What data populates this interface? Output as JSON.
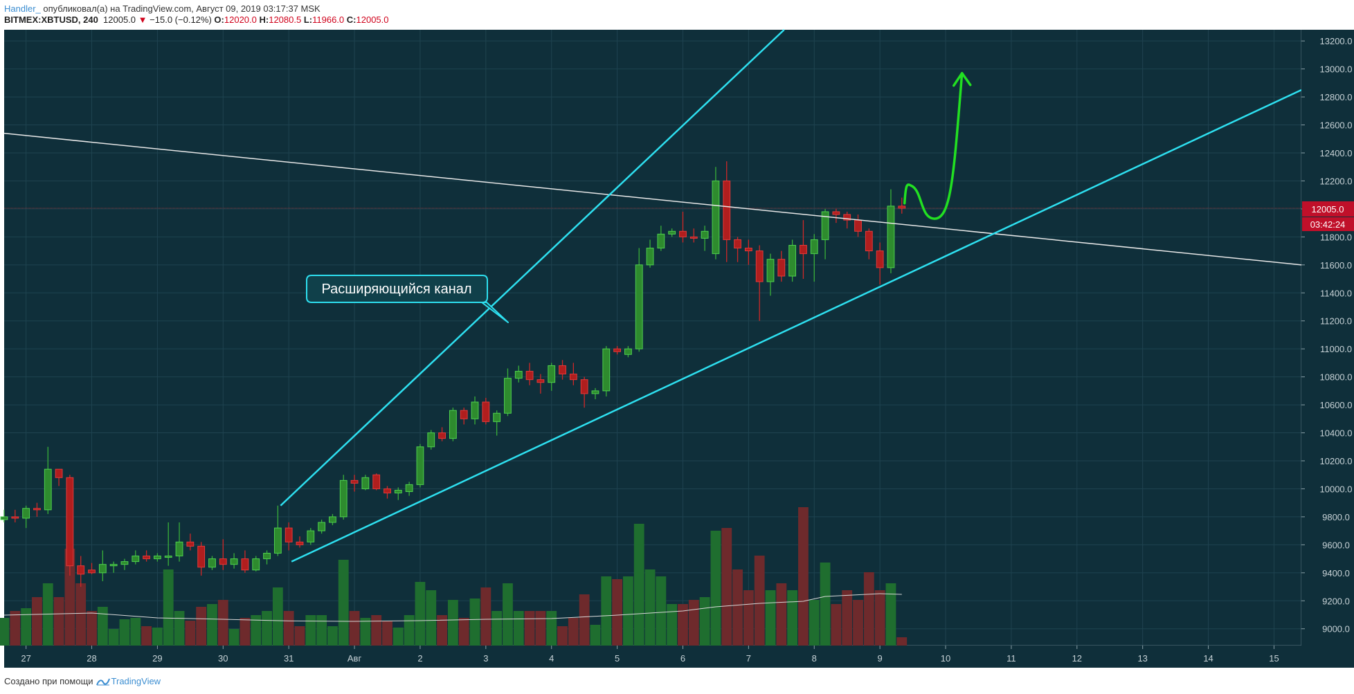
{
  "header": {
    "author": "Handler_",
    "published_text": "опубликовал(а) на TradingView.com, Август 09, 2019 03:17:37 MSK",
    "symbol": "BITMEX:XBTUSD, 240",
    "last": "12005.0",
    "change": "−15.0 (−0.12%)",
    "o_label": "O:",
    "o_value": "12020.0",
    "h_label": "H:",
    "h_value": "12080.5",
    "l_label": "L:",
    "l_value": "11966.0",
    "c_label": "C:",
    "c_value": "12005.0"
  },
  "footer": {
    "made_with": "Создано при помощи",
    "brand": "TradingView"
  },
  "colors": {
    "background": "#0f2f3a",
    "grid": "#1f4350",
    "bull": "#2e8b2e",
    "bear": "#b01e1e",
    "vol_bull": "#1f6e2f",
    "vol_bear": "#6e2a2c",
    "channel": "#2ee0f0",
    "trendline": "#e8e8e8",
    "projection": "#22e022",
    "price_tag": "#c0102a"
  },
  "chart_data": {
    "type": "candlestick",
    "timeframe_hours": 4,
    "y_range": [
      8880,
      13280
    ],
    "y_ticks": [
      9000,
      9200,
      9400,
      9600,
      9800,
      10000,
      10200,
      10400,
      10600,
      10800,
      11000,
      11200,
      11400,
      11600,
      11800,
      12000,
      12200,
      12400,
      12600,
      12800,
      13000,
      13200
    ],
    "x_range": [
      "2019-07-26T16:00",
      "2019-08-15T10:00"
    ],
    "x_ticks": [
      {
        "date": "2019-07-27",
        "label": "27"
      },
      {
        "date": "2019-07-28",
        "label": "28"
      },
      {
        "date": "2019-07-29",
        "label": "29"
      },
      {
        "date": "2019-07-30",
        "label": "30"
      },
      {
        "date": "2019-07-31",
        "label": "31"
      },
      {
        "date": "2019-08-01",
        "label": "Авг"
      },
      {
        "date": "2019-08-02",
        "label": "2"
      },
      {
        "date": "2019-08-03",
        "label": "3"
      },
      {
        "date": "2019-08-04",
        "label": "4"
      },
      {
        "date": "2019-08-05",
        "label": "5"
      },
      {
        "date": "2019-08-06",
        "label": "6"
      },
      {
        "date": "2019-08-07",
        "label": "7"
      },
      {
        "date": "2019-08-08",
        "label": "8"
      },
      {
        "date": "2019-08-09",
        "label": "9"
      },
      {
        "date": "2019-08-10",
        "label": "10"
      },
      {
        "date": "2019-08-11",
        "label": "11"
      },
      {
        "date": "2019-08-12",
        "label": "12"
      },
      {
        "date": "2019-08-13",
        "label": "13"
      },
      {
        "date": "2019-08-14",
        "label": "14"
      },
      {
        "date": "2019-08-15",
        "label": "15"
      }
    ],
    "candles": [
      {
        "t": "2019-07-26T16:00",
        "o": 9780,
        "h": 9850,
        "l": 9760,
        "c": 9800,
        "v": 0.2
      },
      {
        "t": "2019-07-26T20:00",
        "o": 9800,
        "h": 9850,
        "l": 9760,
        "c": 9790,
        "v": 0.25
      },
      {
        "t": "2019-07-27T00:00",
        "o": 9790,
        "h": 9880,
        "l": 9720,
        "c": 9860,
        "v": 0.27
      },
      {
        "t": "2019-07-27T04:00",
        "o": 9860,
        "h": 9900,
        "l": 9800,
        "c": 9850,
        "v": 0.35
      },
      {
        "t": "2019-07-27T08:00",
        "o": 9850,
        "h": 10300,
        "l": 9820,
        "c": 10140,
        "v": 0.45
      },
      {
        "t": "2019-07-27T12:00",
        "o": 10140,
        "h": 10140,
        "l": 10020,
        "c": 10080,
        "v": 0.35
      },
      {
        "t": "2019-07-27T16:00",
        "o": 10080,
        "h": 10100,
        "l": 9380,
        "c": 9450,
        "v": 0.7
      },
      {
        "t": "2019-07-27T20:00",
        "o": 9450,
        "h": 9520,
        "l": 9300,
        "c": 9390,
        "v": 0.45
      },
      {
        "t": "2019-07-28T00:00",
        "o": 9420,
        "h": 9470,
        "l": 9390,
        "c": 9400,
        "v": 0.25
      },
      {
        "t": "2019-07-28T04:00",
        "o": 9400,
        "h": 9560,
        "l": 9340,
        "c": 9460,
        "v": 0.28
      },
      {
        "t": "2019-07-28T08:00",
        "o": 9460,
        "h": 9480,
        "l": 9400,
        "c": 9460,
        "v": 0.12
      },
      {
        "t": "2019-07-28T12:00",
        "o": 9460,
        "h": 9500,
        "l": 9420,
        "c": 9480,
        "v": 0.19
      },
      {
        "t": "2019-07-28T16:00",
        "o": 9480,
        "h": 9560,
        "l": 9460,
        "c": 9520,
        "v": 0.2
      },
      {
        "t": "2019-07-28T20:00",
        "o": 9520,
        "h": 9560,
        "l": 9480,
        "c": 9500,
        "v": 0.14
      },
      {
        "t": "2019-07-29T00:00",
        "o": 9500,
        "h": 9540,
        "l": 9480,
        "c": 9520,
        "v": 0.13
      },
      {
        "t": "2019-07-29T04:00",
        "o": 9520,
        "h": 9760,
        "l": 9450,
        "c": 9520,
        "v": 0.55
      },
      {
        "t": "2019-07-29T08:00",
        "o": 9520,
        "h": 9760,
        "l": 9480,
        "c": 9620,
        "v": 0.25
      },
      {
        "t": "2019-07-29T12:00",
        "o": 9620,
        "h": 9680,
        "l": 9560,
        "c": 9590,
        "v": 0.18
      },
      {
        "t": "2019-07-29T16:00",
        "o": 9590,
        "h": 9620,
        "l": 9380,
        "c": 9440,
        "v": 0.28
      },
      {
        "t": "2019-07-29T20:00",
        "o": 9440,
        "h": 9520,
        "l": 9420,
        "c": 9500,
        "v": 0.3
      },
      {
        "t": "2019-07-30T00:00",
        "o": 9500,
        "h": 9640,
        "l": 9420,
        "c": 9460,
        "v": 0.33
      },
      {
        "t": "2019-07-30T04:00",
        "o": 9460,
        "h": 9540,
        "l": 9430,
        "c": 9500,
        "v": 0.12
      },
      {
        "t": "2019-07-30T08:00",
        "o": 9500,
        "h": 9560,
        "l": 9400,
        "c": 9420,
        "v": 0.2
      },
      {
        "t": "2019-07-30T12:00",
        "o": 9420,
        "h": 9520,
        "l": 9410,
        "c": 9500,
        "v": 0.22
      },
      {
        "t": "2019-07-30T16:00",
        "o": 9500,
        "h": 9560,
        "l": 9460,
        "c": 9540,
        "v": 0.25
      },
      {
        "t": "2019-07-30T20:00",
        "o": 9540,
        "h": 9880,
        "l": 9520,
        "c": 9720,
        "v": 0.42
      },
      {
        "t": "2019-07-31T00:00",
        "o": 9720,
        "h": 9760,
        "l": 9560,
        "c": 9620,
        "v": 0.25
      },
      {
        "t": "2019-07-31T04:00",
        "o": 9620,
        "h": 9660,
        "l": 9580,
        "c": 9600,
        "v": 0.14
      },
      {
        "t": "2019-07-31T08:00",
        "o": 9620,
        "h": 9720,
        "l": 9600,
        "c": 9700,
        "v": 0.22
      },
      {
        "t": "2019-07-31T12:00",
        "o": 9700,
        "h": 9780,
        "l": 9680,
        "c": 9760,
        "v": 0.22
      },
      {
        "t": "2019-07-31T16:00",
        "o": 9760,
        "h": 9820,
        "l": 9740,
        "c": 9800,
        "v": 0.14
      },
      {
        "t": "2019-07-31T20:00",
        "o": 9800,
        "h": 10100,
        "l": 9780,
        "c": 10060,
        "v": 0.62
      },
      {
        "t": "2019-08-01T00:00",
        "o": 10060,
        "h": 10100,
        "l": 9980,
        "c": 10040,
        "v": 0.25
      },
      {
        "t": "2019-08-01T04:00",
        "o": 10000,
        "h": 10100,
        "l": 9990,
        "c": 10080,
        "v": 0.2
      },
      {
        "t": "2019-08-01T08:00",
        "o": 10100,
        "h": 10110,
        "l": 9990,
        "c": 10000,
        "v": 0.22
      },
      {
        "t": "2019-08-01T12:00",
        "o": 10000,
        "h": 10020,
        "l": 9930,
        "c": 9970,
        "v": 0.18
      },
      {
        "t": "2019-08-01T16:00",
        "o": 9970,
        "h": 10010,
        "l": 9920,
        "c": 9990,
        "v": 0.13
      },
      {
        "t": "2019-08-01T20:00",
        "o": 9980,
        "h": 10050,
        "l": 9950,
        "c": 10030,
        "v": 0.22
      },
      {
        "t": "2019-08-02T00:00",
        "o": 10030,
        "h": 10320,
        "l": 10010,
        "c": 10300,
        "v": 0.46
      },
      {
        "t": "2019-08-02T04:00",
        "o": 10300,
        "h": 10420,
        "l": 10280,
        "c": 10400,
        "v": 0.4
      },
      {
        "t": "2019-08-02T08:00",
        "o": 10400,
        "h": 10440,
        "l": 10340,
        "c": 10360,
        "v": 0.22
      },
      {
        "t": "2019-08-02T12:00",
        "o": 10360,
        "h": 10580,
        "l": 10340,
        "c": 10560,
        "v": 0.33
      },
      {
        "t": "2019-08-02T16:00",
        "o": 10560,
        "h": 10580,
        "l": 10460,
        "c": 10500,
        "v": 0.2
      },
      {
        "t": "2019-08-02T20:00",
        "o": 10500,
        "h": 10660,
        "l": 10460,
        "c": 10620,
        "v": 0.34
      },
      {
        "t": "2019-08-03T00:00",
        "o": 10620,
        "h": 10650,
        "l": 10460,
        "c": 10480,
        "v": 0.42
      },
      {
        "t": "2019-08-03T04:00",
        "o": 10480,
        "h": 10560,
        "l": 10380,
        "c": 10540,
        "v": 0.25
      },
      {
        "t": "2019-08-03T08:00",
        "o": 10540,
        "h": 10860,
        "l": 10520,
        "c": 10790,
        "v": 0.45
      },
      {
        "t": "2019-08-03T12:00",
        "o": 10790,
        "h": 10880,
        "l": 10760,
        "c": 10840,
        "v": 0.25
      },
      {
        "t": "2019-08-03T16:00",
        "o": 10840,
        "h": 10900,
        "l": 10740,
        "c": 10780,
        "v": 0.25
      },
      {
        "t": "2019-08-03T20:00",
        "o": 10780,
        "h": 10820,
        "l": 10680,
        "c": 10760,
        "v": 0.25
      },
      {
        "t": "2019-08-04T00:00",
        "o": 10760,
        "h": 10900,
        "l": 10700,
        "c": 10880,
        "v": 0.25
      },
      {
        "t": "2019-08-04T04:00",
        "o": 10880,
        "h": 10920,
        "l": 10780,
        "c": 10820,
        "v": 0.14
      },
      {
        "t": "2019-08-04T08:00",
        "o": 10820,
        "h": 10900,
        "l": 10740,
        "c": 10780,
        "v": 0.2
      },
      {
        "t": "2019-08-04T12:00",
        "o": 10780,
        "h": 10800,
        "l": 10580,
        "c": 10680,
        "v": 0.37
      },
      {
        "t": "2019-08-04T16:00",
        "o": 10680,
        "h": 10720,
        "l": 10640,
        "c": 10700,
        "v": 0.15
      },
      {
        "t": "2019-08-04T20:00",
        "o": 10700,
        "h": 11020,
        "l": 10660,
        "c": 11000,
        "v": 0.5
      },
      {
        "t": "2019-08-05T00:00",
        "o": 11000,
        "h": 11020,
        "l": 10960,
        "c": 10980,
        "v": 0.48
      },
      {
        "t": "2019-08-05T04:00",
        "o": 10960,
        "h": 11020,
        "l": 10940,
        "c": 11000,
        "v": 0.5
      },
      {
        "t": "2019-08-05T08:00",
        "o": 11000,
        "h": 11720,
        "l": 10980,
        "c": 11600,
        "v": 0.88
      },
      {
        "t": "2019-08-05T12:00",
        "o": 11600,
        "h": 11780,
        "l": 11580,
        "c": 11720,
        "v": 0.55
      },
      {
        "t": "2019-08-05T16:00",
        "o": 11720,
        "h": 11880,
        "l": 11700,
        "c": 11820,
        "v": 0.5
      },
      {
        "t": "2019-08-05T20:00",
        "o": 11820,
        "h": 11860,
        "l": 11800,
        "c": 11840,
        "v": 0.3
      },
      {
        "t": "2019-08-06T00:00",
        "o": 11840,
        "h": 11980,
        "l": 11760,
        "c": 11800,
        "v": 0.3
      },
      {
        "t": "2019-08-06T04:00",
        "o": 11800,
        "h": 11860,
        "l": 11760,
        "c": 11790,
        "v": 0.33
      },
      {
        "t": "2019-08-06T08:00",
        "o": 11790,
        "h": 11880,
        "l": 11700,
        "c": 11840,
        "v": 0.35
      },
      {
        "t": "2019-08-06T12:00",
        "o": 11680,
        "h": 12300,
        "l": 11640,
        "c": 12200,
        "v": 0.83
      },
      {
        "t": "2019-08-06T16:00",
        "o": 12200,
        "h": 12340,
        "l": 11620,
        "c": 11780,
        "v": 0.85
      },
      {
        "t": "2019-08-06T20:00",
        "o": 11780,
        "h": 11800,
        "l": 11620,
        "c": 11720,
        "v": 0.55
      },
      {
        "t": "2019-08-07T00:00",
        "o": 11720,
        "h": 11780,
        "l": 11600,
        "c": 11700,
        "v": 0.4
      },
      {
        "t": "2019-08-07T04:00",
        "o": 11700,
        "h": 11740,
        "l": 11200,
        "c": 11480,
        "v": 0.65
      },
      {
        "t": "2019-08-07T08:00",
        "o": 11480,
        "h": 11680,
        "l": 11380,
        "c": 11640,
        "v": 0.4
      },
      {
        "t": "2019-08-07T12:00",
        "o": 11640,
        "h": 11700,
        "l": 11480,
        "c": 11520,
        "v": 0.45
      },
      {
        "t": "2019-08-07T16:00",
        "o": 11520,
        "h": 11780,
        "l": 11480,
        "c": 11740,
        "v": 0.4
      },
      {
        "t": "2019-08-07T20:00",
        "o": 11740,
        "h": 11920,
        "l": 11500,
        "c": 11680,
        "v": 1.0
      },
      {
        "t": "2019-08-08T00:00",
        "o": 11680,
        "h": 11820,
        "l": 11480,
        "c": 11780,
        "v": 0.33
      },
      {
        "t": "2019-08-08T04:00",
        "o": 11780,
        "h": 12000,
        "l": 11640,
        "c": 11980,
        "v": 0.6
      },
      {
        "t": "2019-08-08T08:00",
        "o": 11980,
        "h": 12000,
        "l": 11900,
        "c": 11960,
        "v": 0.3
      },
      {
        "t": "2019-08-08T12:00",
        "o": 11960,
        "h": 11980,
        "l": 11860,
        "c": 11920,
        "v": 0.4
      },
      {
        "t": "2019-08-08T16:00",
        "o": 11920,
        "h": 11960,
        "l": 11800,
        "c": 11840,
        "v": 0.33
      },
      {
        "t": "2019-08-08T20:00",
        "o": 11840,
        "h": 11860,
        "l": 11640,
        "c": 11700,
        "v": 0.53
      },
      {
        "t": "2019-08-09T00:00",
        "o": 11700,
        "h": 11760,
        "l": 11460,
        "c": 11580,
        "v": 0.4
      },
      {
        "t": "2019-08-09T04:00",
        "o": 11580,
        "h": 12140,
        "l": 11540,
        "c": 12020,
        "v": 0.45
      },
      {
        "t": "2019-08-09T08:00",
        "o": 12020,
        "h": 12080.5,
        "l": 11966,
        "c": 12005,
        "v": 0.06
      }
    ],
    "volume_ma": [
      {
        "t": "2019-07-26T16:00",
        "v": 0.22
      },
      {
        "t": "2019-07-28T00:00",
        "v": 0.235
      },
      {
        "t": "2019-07-29T00:00",
        "v": 0.2
      },
      {
        "t": "2019-07-30T00:00",
        "v": 0.19
      },
      {
        "t": "2019-07-31T00:00",
        "v": 0.178
      },
      {
        "t": "2019-08-01T00:00",
        "v": 0.175
      },
      {
        "t": "2019-08-02T00:00",
        "v": 0.18
      },
      {
        "t": "2019-08-03T00:00",
        "v": 0.19
      },
      {
        "t": "2019-08-04T00:00",
        "v": 0.195
      },
      {
        "t": "2019-08-05T00:00",
        "v": 0.22
      },
      {
        "t": "2019-08-06T00:00",
        "v": 0.25
      },
      {
        "t": "2019-08-06T12:00",
        "v": 0.28
      },
      {
        "t": "2019-08-07T04:00",
        "v": 0.305
      },
      {
        "t": "2019-08-07T20:00",
        "v": 0.32
      },
      {
        "t": "2019-08-08T04:00",
        "v": 0.355
      },
      {
        "t": "2019-08-09T00:00",
        "v": 0.375
      },
      {
        "t": "2019-08-09T08:00",
        "v": 0.37
      }
    ],
    "last_price": 12005.0,
    "last_price_label": "12005.0",
    "countdown": "03:42:24",
    "annotations": {
      "channel_label": "Расширяющийся канал",
      "channel_upper": [
        {
          "t": "2019-07-30T21:00",
          "p": 9880
        },
        {
          "t": "2019-08-07T13:00",
          "p": 13280
        }
      ],
      "channel_lower": [
        {
          "t": "2019-07-31T01:00",
          "p": 9480
        },
        {
          "t": "2019-08-15T10:00",
          "p": 12850
        }
      ],
      "trendline": [
        {
          "t": "2019-07-26T16:00",
          "p": 12540
        },
        {
          "t": "2019-08-15T10:00",
          "p": 11600
        }
      ],
      "projection": [
        {
          "t": "2019-08-09T09:00",
          "p": 12040
        },
        {
          "t": "2019-08-09T12:00",
          "p": 12160
        },
        {
          "t": "2019-08-09T20:00",
          "p": 11930
        },
        {
          "t": "2019-08-10T04:00",
          "p": 12400
        },
        {
          "t": "2019-08-10T06:00",
          "p": 12970
        }
      ]
    }
  }
}
